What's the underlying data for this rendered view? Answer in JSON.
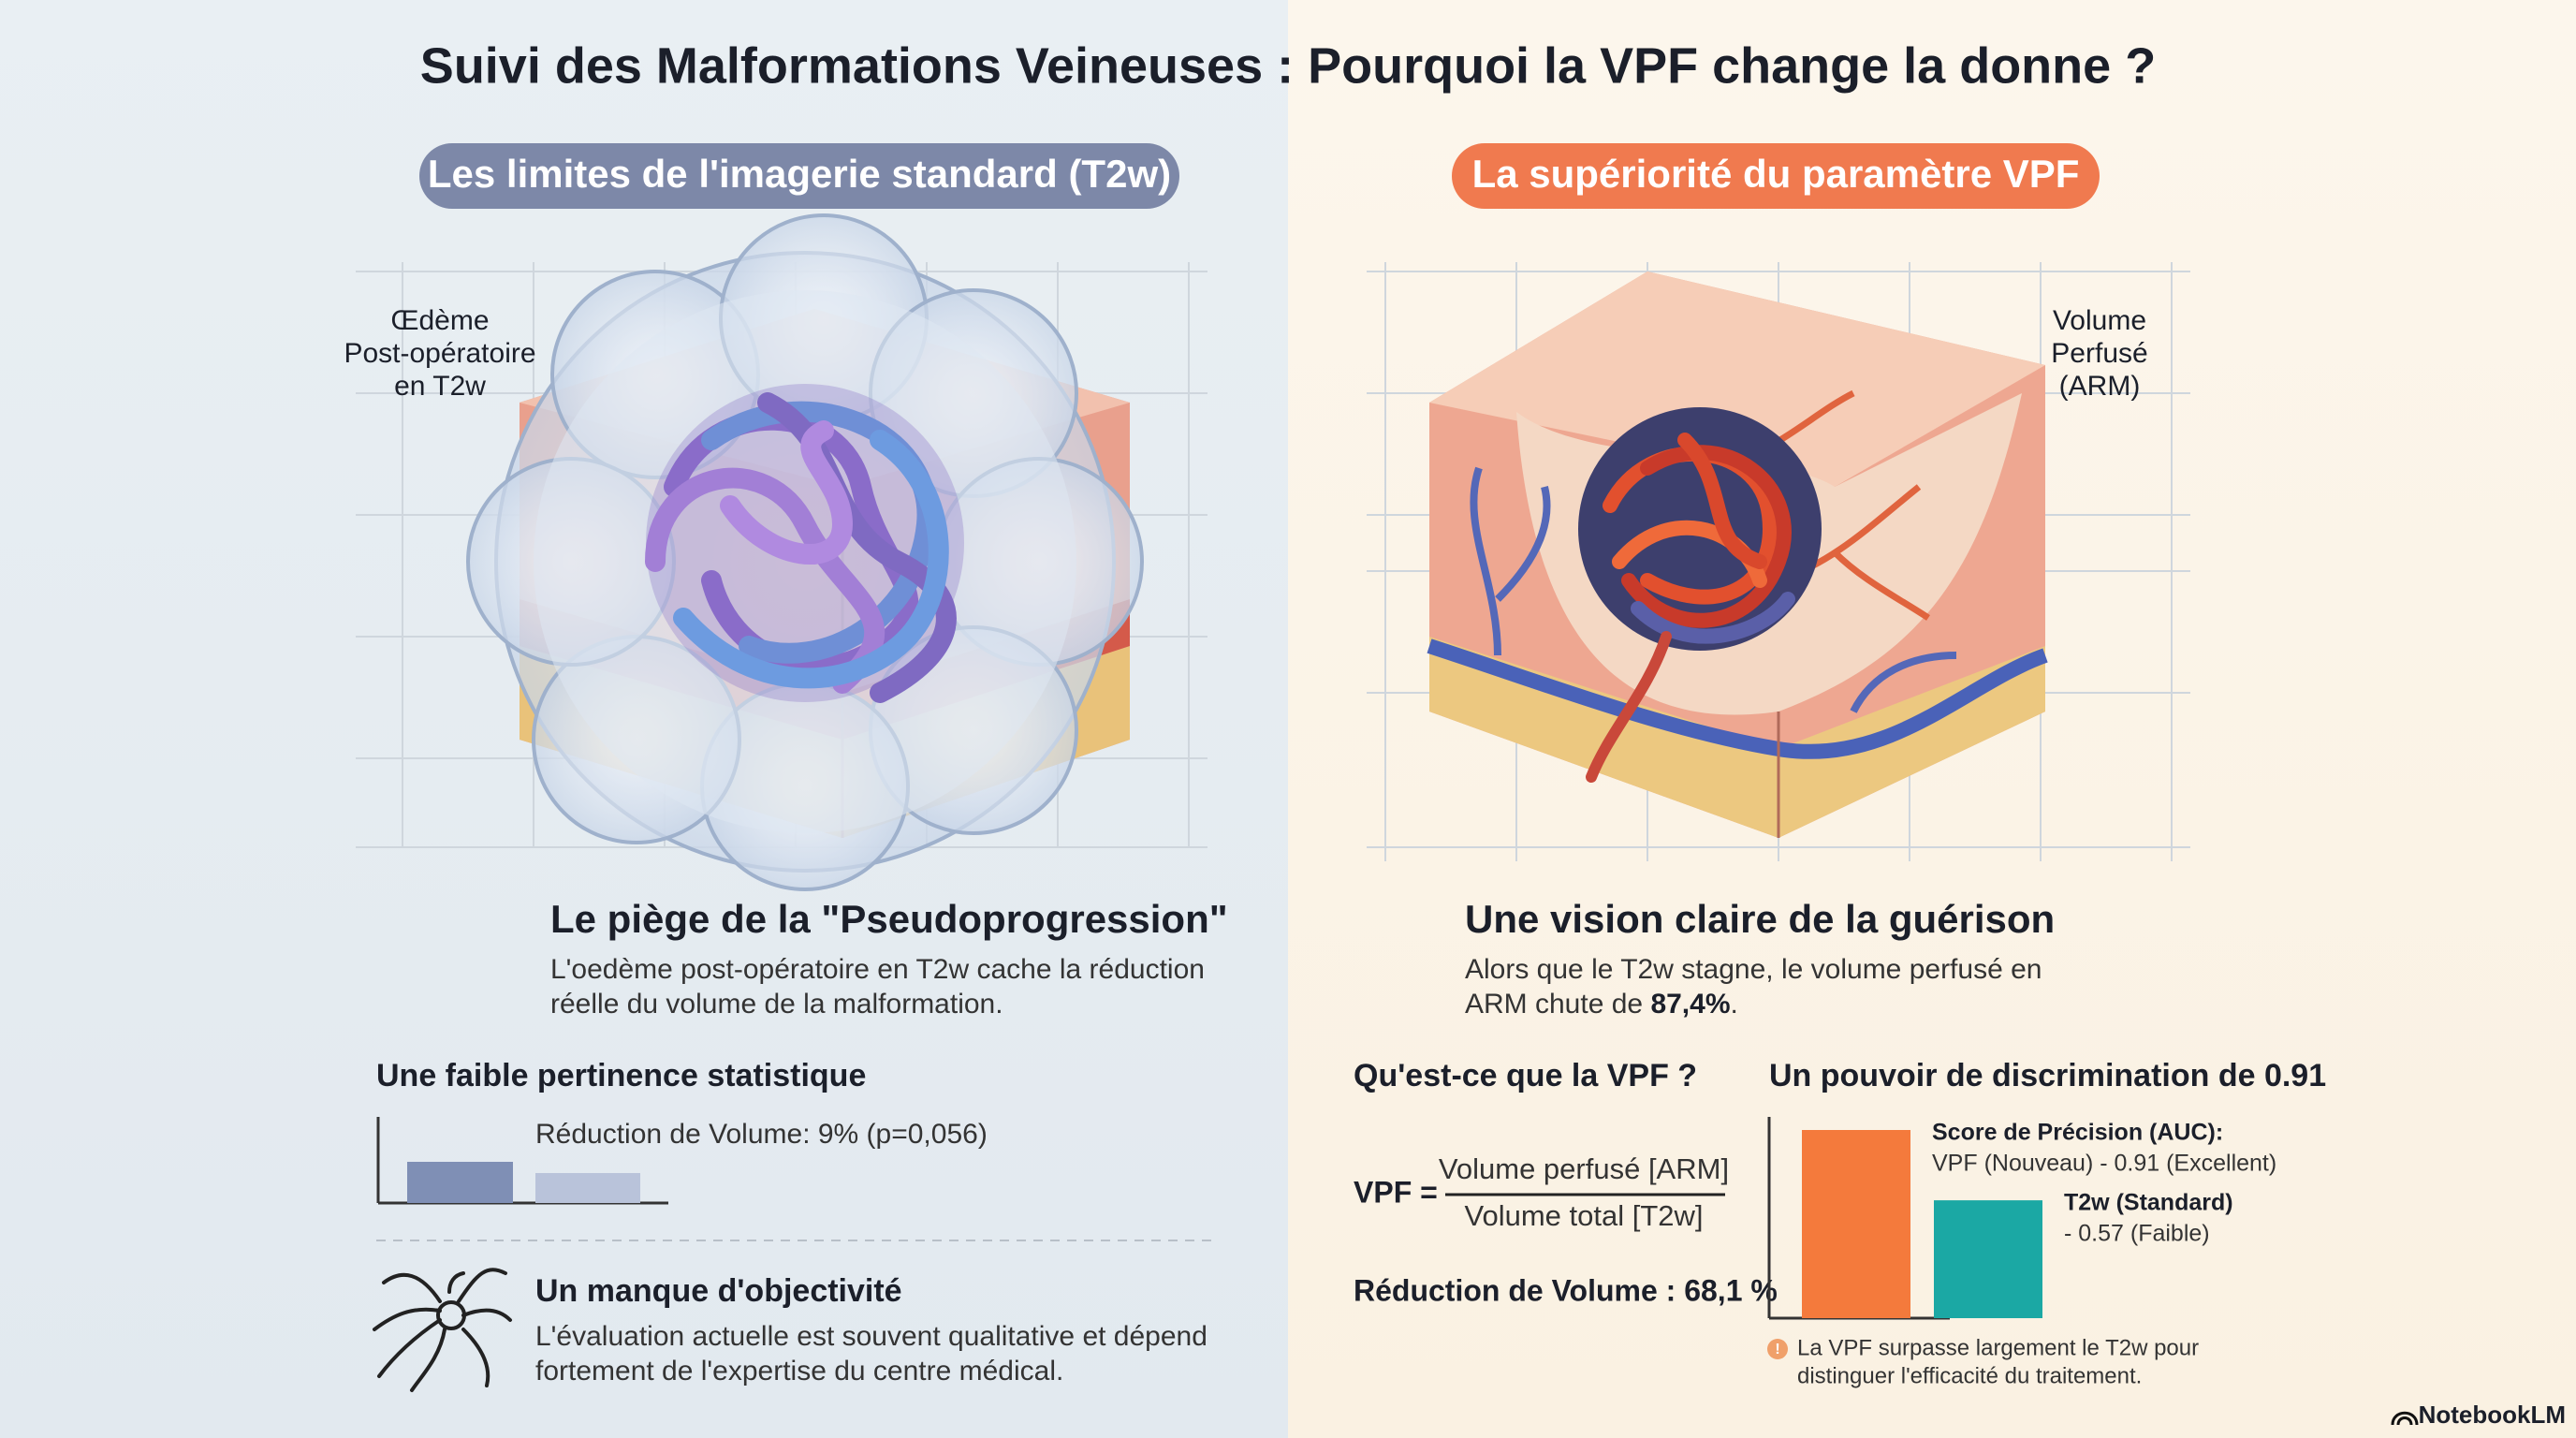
{
  "title": "Suivi des Malformations Veineuses : Pourquoi la VPF change la donne ?",
  "left": {
    "pill": "Les limites de l'imagerie standard (T2w)",
    "side_label": [
      "Œdème",
      "Post-opératoire",
      "en T2w"
    ],
    "pitfall": {
      "heading": "Le piège de la \"Pseudoprogression\"",
      "lines": [
        "L'oedème post-opératoire en T2w cache la réduction",
        "réelle du volume de la malformation."
      ]
    },
    "stats": {
      "heading": "Une faible pertinence statistique",
      "chart_label": "Réduction de Volume: 9% (p=0,056)"
    },
    "objectivity": {
      "heading": "Un manque d'objectivité",
      "lines": [
        "L'évaluation actuelle est souvent qualitative et dépend",
        "fortement de l'expertise du centre médical."
      ]
    }
  },
  "right": {
    "pill": "La supériorité du paramètre VPF",
    "side_label": [
      "Volume",
      "Perfusé",
      "(ARM)"
    ],
    "vision": {
      "heading": "Une vision claire de la guérison",
      "line1": "Alors que le T2w stagne, le volume perfusé en",
      "line2": [
        "ARM chute de ",
        "87,4%",
        "."
      ]
    },
    "formula": {
      "heading": "Qu'est-ce que la VPF ?",
      "lhs": "VPF =",
      "numerator": "Volume perfusé [ARM]",
      "denominator": "Volume total [T2w]",
      "reduction": "Réduction de Volume : 68,1 %"
    },
    "auc_chart": {
      "heading": "Un pouvoir de discrimination de 0.91",
      "bars": [
        {
          "title": "Score de Précision (AUC):",
          "label": "VPF (Nouveau) - 0.91 (Excellent)",
          "value": 0.91,
          "color": "#f47a3c"
        },
        {
          "title": "T2w (Standard)",
          "label": "- 0.57 (Faible)",
          "value": 0.57,
          "color": "#1ba8a4"
        }
      ],
      "note": [
        "La VPF surpasse largement le T2w pour",
        "distinguer l'efficacité du traitement."
      ]
    }
  },
  "brand": "NotebookLM"
}
